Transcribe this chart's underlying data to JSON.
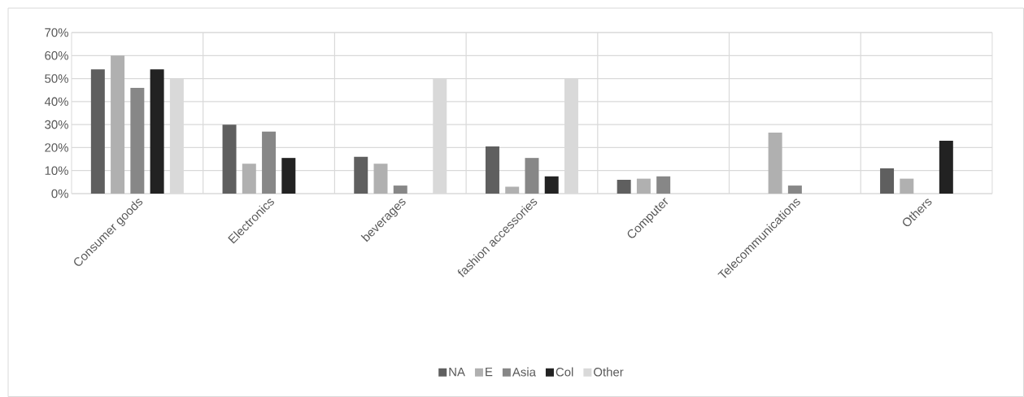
{
  "chart_data": {
    "type": "bar",
    "categories": [
      "Consumer goods",
      "Electronics",
      "beverages",
      "fashion accessories",
      "Computer",
      "Telecommunications",
      "Others"
    ],
    "series": [
      {
        "name": "NA",
        "color": "#5f5f5f",
        "values": [
          54,
          30,
          16,
          20.5,
          6,
          null,
          11
        ]
      },
      {
        "name": "E",
        "color": "#b0b0b0",
        "values": [
          60,
          13,
          13,
          3,
          6.5,
          26.5,
          6.5
        ]
      },
      {
        "name": "Asia",
        "color": "#878787",
        "values": [
          46,
          27,
          3.5,
          15.5,
          7.5,
          3.5,
          null
        ]
      },
      {
        "name": "Col",
        "color": "#222222",
        "values": [
          54,
          15.5,
          null,
          7.5,
          null,
          null,
          23
        ]
      },
      {
        "name": "Other",
        "color": "#d9d9d9",
        "values": [
          50,
          null,
          50,
          50,
          null,
          null,
          null
        ]
      }
    ],
    "ylim": [
      0,
      70
    ],
    "yticks": [
      {
        "value": 0,
        "label": "0%"
      },
      {
        "value": 10,
        "label": "10%"
      },
      {
        "value": 20,
        "label": "20%"
      },
      {
        "value": 30,
        "label": "30%"
      },
      {
        "value": 40,
        "label": "40%"
      },
      {
        "value": 50,
        "label": "50%"
      },
      {
        "value": 60,
        "label": "60%"
      },
      {
        "value": 70,
        "label": "70%"
      }
    ],
    "grid": true,
    "legend": "bottom"
  }
}
